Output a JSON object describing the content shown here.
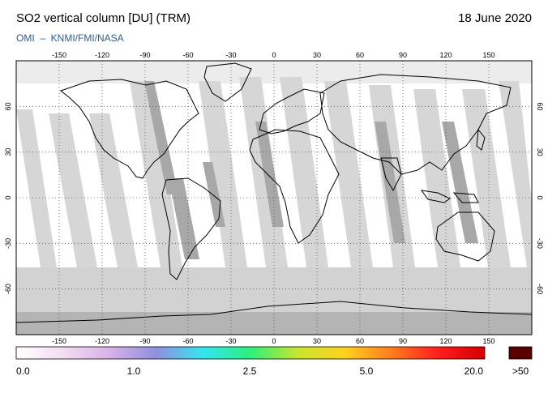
{
  "header": {
    "title": "SO2 vertical column [DU] (TRM)",
    "date": "18 June 2020",
    "credit": "OMI  –  KNMI/FMI/NASA"
  },
  "map": {
    "lon_ticks": [
      "-150",
      "-120",
      "-90",
      "-60",
      "-30",
      "0",
      "30",
      "60",
      "90",
      "120",
      "150"
    ],
    "lat_ticks": [
      "60",
      "30",
      "0",
      "-30",
      "-60"
    ],
    "lon_range": [
      -180,
      180
    ],
    "lat_range": [
      -90,
      90
    ],
    "grid": "dotted"
  },
  "colorbar": {
    "labels": [
      "0.0",
      "1.0",
      "2.5",
      "5.0",
      "20.0"
    ],
    "overflow_label": ">50",
    "overflow_color": "#5a0000",
    "gradient": [
      "#ffffff",
      "#f4dcf2",
      "#d8b2e8",
      "#8f8fe0",
      "#33e6f0",
      "#2ef07a",
      "#c8e62e",
      "#ffd21e",
      "#ff7d1e",
      "#ff1e1e",
      "#d40000"
    ]
  }
}
